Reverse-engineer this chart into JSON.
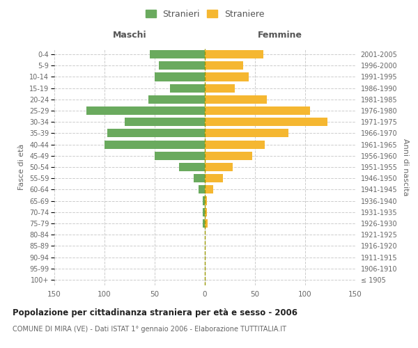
{
  "age_groups": [
    "100+",
    "95-99",
    "90-94",
    "85-89",
    "80-84",
    "75-79",
    "70-74",
    "65-69",
    "60-64",
    "55-59",
    "50-54",
    "45-49",
    "40-44",
    "35-39",
    "30-34",
    "25-29",
    "20-24",
    "15-19",
    "10-14",
    "5-9",
    "0-4"
  ],
  "birth_years": [
    "≤ 1905",
    "1906-1910",
    "1911-1915",
    "1916-1920",
    "1921-1925",
    "1926-1930",
    "1931-1935",
    "1936-1940",
    "1941-1945",
    "1946-1950",
    "1951-1955",
    "1956-1960",
    "1961-1965",
    "1966-1970",
    "1971-1975",
    "1976-1980",
    "1981-1985",
    "1986-1990",
    "1991-1995",
    "1996-2000",
    "2001-2005"
  ],
  "males": [
    0,
    0,
    0,
    0,
    0,
    2,
    2,
    2,
    6,
    11,
    26,
    50,
    100,
    97,
    80,
    118,
    56,
    35,
    50,
    46,
    55
  ],
  "females": [
    0,
    0,
    0,
    0,
    0,
    3,
    2,
    2,
    8,
    18,
    28,
    47,
    60,
    83,
    122,
    105,
    62,
    30,
    44,
    38,
    58
  ],
  "male_color": "#6aaa5e",
  "female_color": "#f5b731",
  "background_color": "#ffffff",
  "grid_color": "#cccccc",
  "center_line_color": "#999900",
  "title": "Popolazione per cittadinanza straniera per età e sesso - 2006",
  "subtitle": "COMUNE DI MIRA (VE) - Dati ISTAT 1° gennaio 2006 - Elaborazione TUTTITALIA.IT",
  "label_maschi": "Maschi",
  "label_femmine": "Femmine",
  "ylabel_left": "Fasce di età",
  "ylabel_right": "Anni di nascita",
  "legend_male": "Stranieri",
  "legend_female": "Straniere",
  "xlim": 150,
  "xticks": [
    150,
    100,
    50,
    0,
    50,
    100,
    150
  ]
}
